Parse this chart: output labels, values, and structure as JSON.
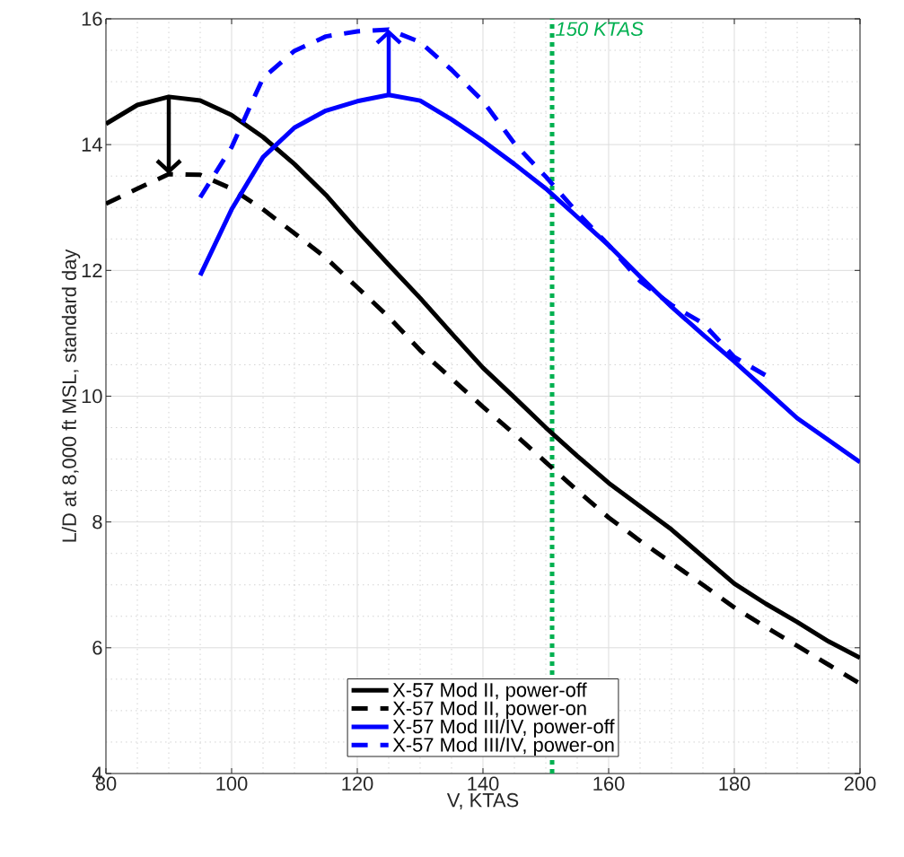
{
  "chart_data": {
    "type": "line",
    "xlabel": "V, KTAS",
    "ylabel": "L/D at 8,000 ft MSL, standard day",
    "xlim": [
      80,
      200
    ],
    "ylim": [
      4,
      16
    ],
    "xticks": [
      80,
      100,
      120,
      140,
      160,
      180,
      200
    ],
    "yticks": [
      4,
      6,
      8,
      10,
      12,
      14,
      16
    ],
    "grid": true,
    "legend": "bottom",
    "series": [
      {
        "name": "X-57 Mod II, power-off",
        "color": "#000000",
        "line_style": "solid",
        "x": [
          80,
          85,
          90,
          95,
          100,
          105,
          110,
          115,
          120,
          125,
          130,
          135,
          140,
          145,
          150,
          155,
          160,
          165,
          170,
          175,
          180,
          185,
          190,
          195,
          200
        ],
        "values": [
          14.33,
          14.63,
          14.76,
          14.7,
          14.47,
          14.12,
          13.69,
          13.2,
          12.63,
          12.09,
          11.56,
          11.0,
          10.45,
          9.98,
          9.5,
          9.05,
          8.62,
          8.25,
          7.88,
          7.45,
          7.02,
          6.7,
          6.41,
          6.1,
          5.84
        ]
      },
      {
        "name": "X-57 Mod II, power-on",
        "color": "#000000",
        "line_style": "dashed",
        "x": [
          80,
          85,
          90,
          95,
          100,
          105,
          110,
          115,
          120,
          125,
          130,
          135,
          140,
          145,
          150,
          155,
          160,
          165,
          170,
          175,
          180,
          185,
          190,
          195,
          200
        ],
        "values": [
          13.06,
          13.3,
          13.53,
          13.52,
          13.3,
          12.97,
          12.59,
          12.2,
          11.73,
          11.26,
          10.73,
          10.28,
          9.83,
          9.4,
          8.95,
          8.5,
          8.07,
          7.7,
          7.35,
          7.0,
          6.64,
          6.33,
          6.03,
          5.73,
          5.43
        ]
      },
      {
        "name": "X-57 Mod III/IV, power-off",
        "color": "#0000ff",
        "line_style": "solid",
        "x": [
          95,
          100,
          105,
          110,
          115,
          120,
          125,
          130,
          135,
          140,
          145,
          150,
          155,
          160,
          165,
          170,
          175,
          180,
          185,
          190,
          195,
          200
        ],
        "values": [
          11.92,
          12.97,
          13.8,
          14.27,
          14.54,
          14.69,
          14.79,
          14.7,
          14.4,
          14.06,
          13.69,
          13.3,
          12.85,
          12.4,
          11.9,
          11.42,
          10.98,
          10.55,
          10.1,
          9.65,
          9.3,
          8.95
        ]
      },
      {
        "name": "X-57 Mod III/IV, power-on",
        "color": "#0000ff",
        "line_style": "dashed",
        "x": [
          95,
          100,
          105,
          110,
          115,
          120,
          125,
          130,
          135,
          140,
          145,
          150,
          155,
          160,
          165,
          170,
          175,
          180,
          185
        ],
        "values": [
          13.16,
          13.96,
          15.06,
          15.49,
          15.72,
          15.8,
          15.83,
          15.63,
          15.19,
          14.69,
          14.02,
          13.49,
          12.92,
          12.4,
          11.83,
          11.45,
          11.16,
          10.62,
          10.33
        ]
      }
    ],
    "ref_lines": [
      {
        "axis": "x",
        "value": 151,
        "label": "150 KTAS",
        "color": "#00b050",
        "line_style": "dotted"
      }
    ]
  }
}
